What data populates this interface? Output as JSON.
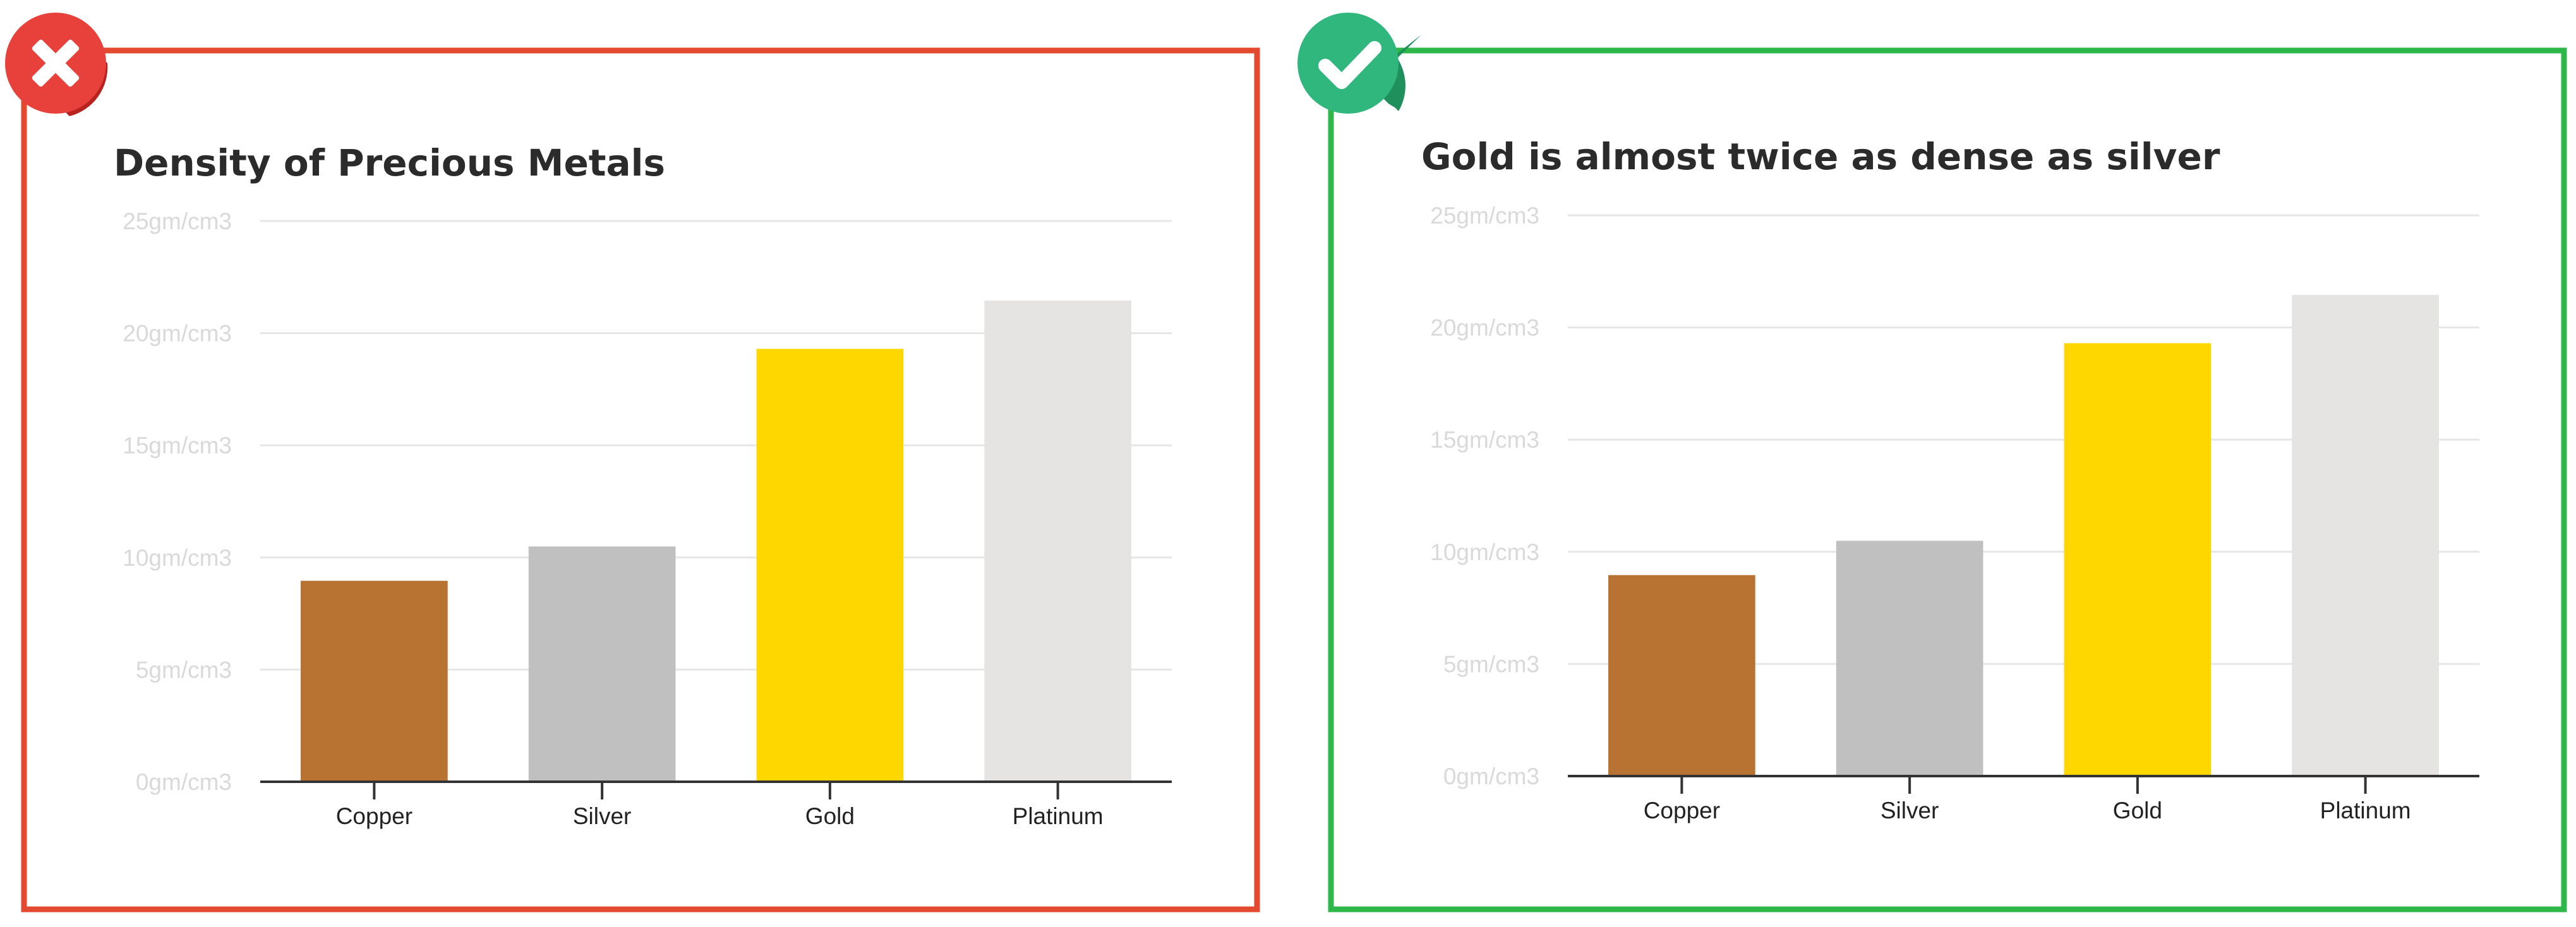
{
  "colors": {
    "bad_frame": "#e2492f",
    "good_frame": "#2eb84a",
    "bad_badge": "#e8403a",
    "bad_badge_shadow": "#b8231f",
    "good_badge": "#2fb77e",
    "good_badge_shadow": "#1f8f5c",
    "copper": "#b87333",
    "silver": "#c0c0c0",
    "gold": "#ffd700",
    "platinum": "#e5e4e2"
  },
  "panels": [
    {
      "badge_icon": "cross-icon",
      "chart_data": {
        "type": "bar",
        "title": "Density of Precious Metals",
        "xlabel": "",
        "ylabel": "",
        "categories": [
          "Copper",
          "Silver",
          "Gold",
          "Platinum"
        ],
        "values": [
          8.96,
          10.49,
          19.3,
          21.45
        ],
        "bar_colors": [
          "#b87333",
          "#c0c0c0",
          "#ffd700",
          "#e5e4e2"
        ],
        "ylim": [
          0,
          25
        ],
        "yticks": [
          "0gm/cm3",
          "5gm/cm3",
          "10gm/cm3",
          "15gm/cm3",
          "20gm/cm3",
          "25gm/cm3"
        ],
        "grid": true,
        "legend": "none"
      }
    },
    {
      "badge_icon": "check-icon",
      "chart_data": {
        "type": "bar",
        "title": "Gold is almost twice as dense as silver",
        "xlabel": "",
        "ylabel": "",
        "categories": [
          "Copper",
          "Silver",
          "Gold",
          "Platinum"
        ],
        "values": [
          8.96,
          10.49,
          19.3,
          21.45
        ],
        "bar_colors": [
          "#b87333",
          "#c0c0c0",
          "#ffd700",
          "#e5e4e2"
        ],
        "ylim": [
          0,
          25
        ],
        "yticks": [
          "0gm/cm3",
          "5gm/cm3",
          "10gm/cm3",
          "15gm/cm3",
          "20gm/cm3",
          "25gm/cm3"
        ],
        "grid": true,
        "legend": "none"
      }
    }
  ]
}
